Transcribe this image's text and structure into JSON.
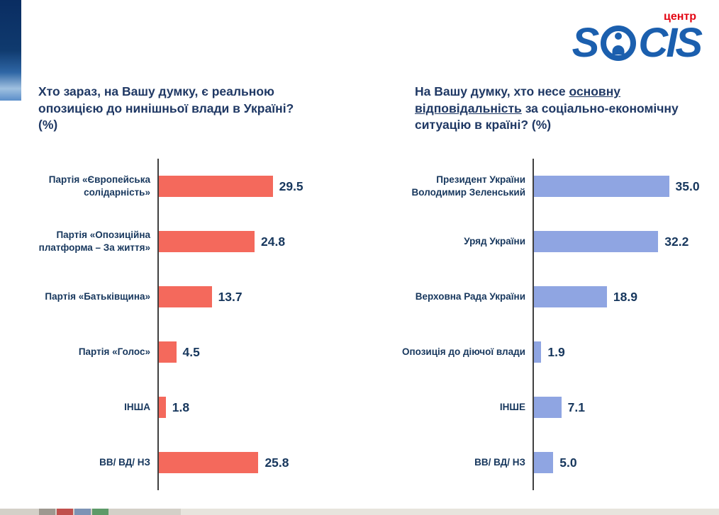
{
  "logo": {
    "title": "SOCIS",
    "subtitle": "центр",
    "color": "#1b5fae",
    "subtitle_color": "#e30613"
  },
  "chart_data": [
    {
      "type": "bar",
      "orientation": "horizontal",
      "title": "Хто зараз, на Вашу думку, є реальною опозицією до нинішньої влади в Україні? (%)",
      "title_segments": [
        {
          "text": "Хто зараз, на Вашу думку, є реальною опозицією до нинішньої влади в Україні? (%)",
          "underline": false
        }
      ],
      "categories": [
        "Партія «Європейська солідарність»",
        "Партія «Опозиційна платформа – За життя»",
        "Партія «Батьківщина»",
        "Партія «Голос»",
        "ІНША",
        "ВВ/ ВД/ НЗ"
      ],
      "values": [
        29.5,
        24.8,
        13.7,
        4.5,
        1.8,
        25.8
      ],
      "bar_color": "#f4695c",
      "xlim": [
        0,
        36
      ],
      "xlabel": "",
      "ylabel": "",
      "grid": false,
      "legend": false,
      "value_labels": true
    },
    {
      "type": "bar",
      "orientation": "horizontal",
      "title": "На Вашу думку, хто несе основну відповідальність за соціально-економічну ситуацію в країні? (%)",
      "title_segments": [
        {
          "text": "На Вашу думку, хто несе ",
          "underline": false
        },
        {
          "text": "основну",
          "underline": true
        },
        {
          "text": " ",
          "underline": false
        },
        {
          "text": "відповідальність",
          "underline": true
        },
        {
          "text": " за соціально-економічну ситуацію в країні? (%)",
          "underline": false
        }
      ],
      "categories": [
        "Президент України Володимир Зеленський",
        "Уряд України",
        "Верховна Рада України",
        "Опозиція до діючої влади",
        "ІНШЕ",
        "ВВ/ ВД/ НЗ"
      ],
      "values": [
        35.0,
        32.2,
        18.9,
        1.9,
        7.1,
        5.0
      ],
      "bar_color": "#8fa5e2",
      "xlim": [
        0,
        36
      ],
      "xlabel": "",
      "ylabel": "",
      "grid": false,
      "legend": false,
      "value_labels": true
    }
  ],
  "taskbar": {
    "items": [
      {
        "color": "#9e9890"
      },
      {
        "color": "#c0504d"
      },
      {
        "color": "#7d93b5"
      },
      {
        "color": "#5d9a68"
      }
    ]
  }
}
